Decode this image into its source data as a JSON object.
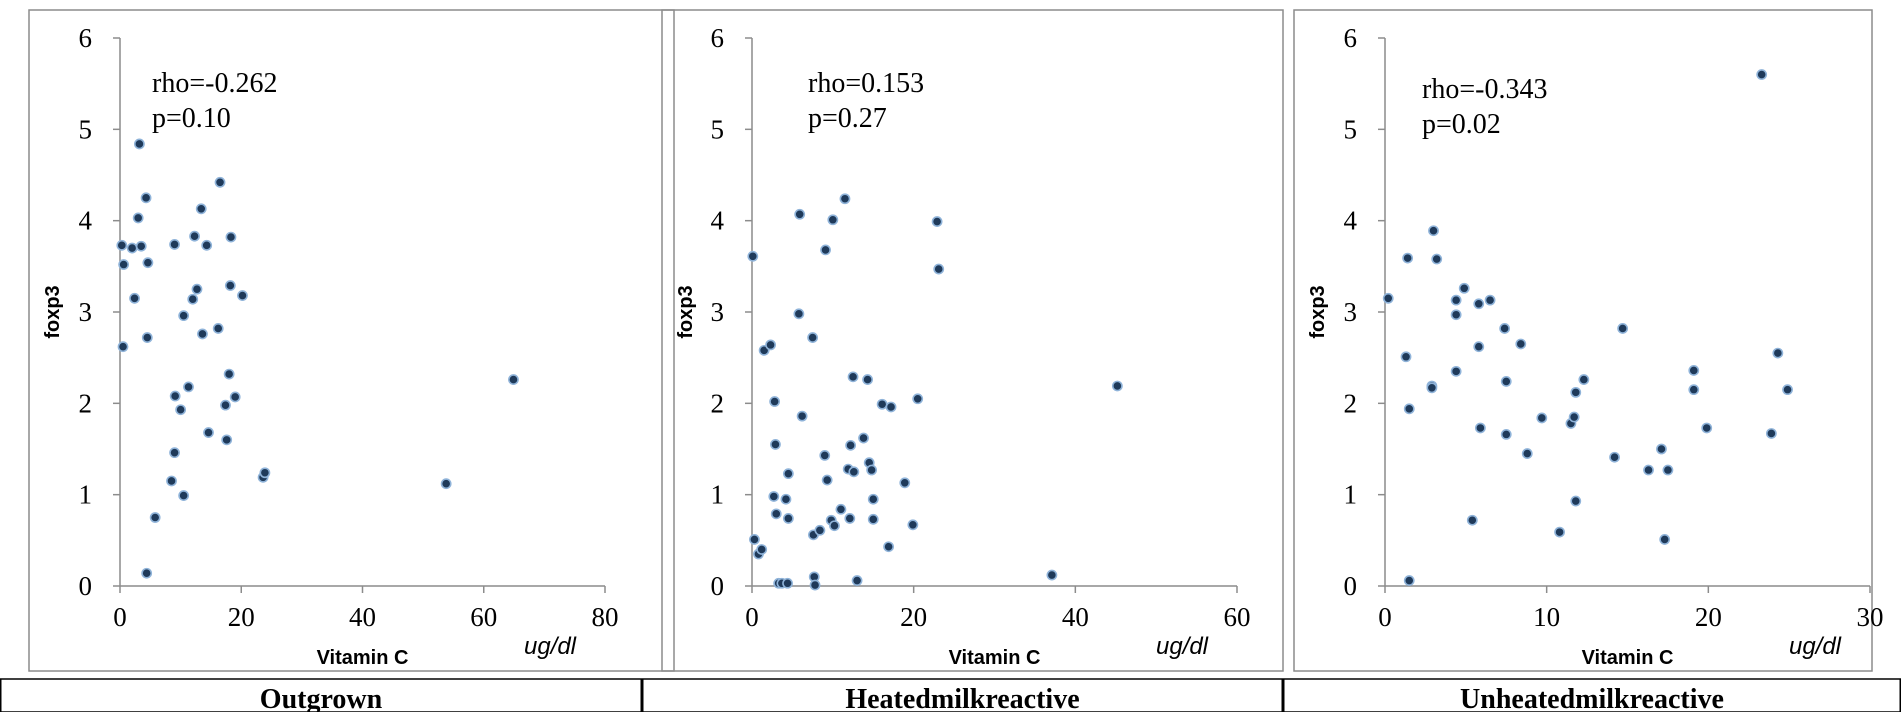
{
  "chart_data": [
    {
      "type": "scatter",
      "caption": "Outgrown",
      "xlabel": "Vitamin C",
      "xunit": "ug/dl",
      "ylabel": "foxp3",
      "xlim": [
        0,
        80
      ],
      "ylim": [
        0,
        6
      ],
      "xticks": [
        0,
        20,
        40,
        60,
        80
      ],
      "yticks": [
        0,
        1,
        2,
        3,
        4,
        5,
        6
      ],
      "annotations": [
        "rho=-0.262",
        "p=0.10"
      ],
      "marker_color": "#1f3a5a",
      "points": [
        [
          0.3,
          3.73
        ],
        [
          0.5,
          2.62
        ],
        [
          0.6,
          3.52
        ],
        [
          2.0,
          3.7
        ],
        [
          2.4,
          3.15
        ],
        [
          3.0,
          4.03
        ],
        [
          3.2,
          4.84
        ],
        [
          3.5,
          3.72
        ],
        [
          4.3,
          4.25
        ],
        [
          4.5,
          2.72
        ],
        [
          4.6,
          3.54
        ],
        [
          4.4,
          0.14
        ],
        [
          5.8,
          0.75
        ],
        [
          8.5,
          1.15
        ],
        [
          9.0,
          3.74
        ],
        [
          9.1,
          2.08
        ],
        [
          9.0,
          1.46
        ],
        [
          10.0,
          1.93
        ],
        [
          10.5,
          0.99
        ],
        [
          10.5,
          2.96
        ],
        [
          11.3,
          2.18
        ],
        [
          12.0,
          3.14
        ],
        [
          12.3,
          3.83
        ],
        [
          12.7,
          3.25
        ],
        [
          13.4,
          4.13
        ],
        [
          13.6,
          2.76
        ],
        [
          14.3,
          3.73
        ],
        [
          14.6,
          1.68
        ],
        [
          16.2,
          2.82
        ],
        [
          16.5,
          4.42
        ],
        [
          17.4,
          1.98
        ],
        [
          17.6,
          1.6
        ],
        [
          18.0,
          2.32
        ],
        [
          18.2,
          3.29
        ],
        [
          18.3,
          3.82
        ],
        [
          19.0,
          2.07
        ],
        [
          20.2,
          3.18
        ],
        [
          23.6,
          1.19
        ],
        [
          23.9,
          1.24
        ],
        [
          53.8,
          1.12
        ],
        [
          64.9,
          2.26
        ]
      ]
    },
    {
      "type": "scatter",
      "caption": "Heatedmilkreactive",
      "xlabel": "Vitamin C",
      "xunit": "ug/dl",
      "ylabel": "foxp3",
      "xlim": [
        0,
        60
      ],
      "ylim": [
        0,
        6
      ],
      "xticks": [
        0,
        20,
        40,
        60
      ],
      "yticks": [
        0,
        1,
        2,
        3,
        4,
        5,
        6
      ],
      "annotations": [
        "rho=0.153",
        "p=0.27"
      ],
      "marker_color": "#1f3a5a",
      "points": [
        [
          0.1,
          3.61
        ],
        [
          0.3,
          0.51
        ],
        [
          0.8,
          0.35
        ],
        [
          1.2,
          0.4
        ],
        [
          1.5,
          2.58
        ],
        [
          2.3,
          2.64
        ],
        [
          2.7,
          0.98
        ],
        [
          2.8,
          2.02
        ],
        [
          2.9,
          1.55
        ],
        [
          3.0,
          0.79
        ],
        [
          3.3,
          0.03
        ],
        [
          3.7,
          0.03
        ],
        [
          4.2,
          0.95
        ],
        [
          4.4,
          0.03
        ],
        [
          4.5,
          1.23
        ],
        [
          4.5,
          0.74
        ],
        [
          5.8,
          2.98
        ],
        [
          5.9,
          4.07
        ],
        [
          6.2,
          1.86
        ],
        [
          7.5,
          2.72
        ],
        [
          7.6,
          0.56
        ],
        [
          7.7,
          0.1
        ],
        [
          7.8,
          0.01
        ],
        [
          8.4,
          0.61
        ],
        [
          9.0,
          1.43
        ],
        [
          9.1,
          3.68
        ],
        [
          9.3,
          1.16
        ],
        [
          9.8,
          0.72
        ],
        [
          10.0,
          4.01
        ],
        [
          10.2,
          0.66
        ],
        [
          11.0,
          0.84
        ],
        [
          11.5,
          4.24
        ],
        [
          11.9,
          1.28
        ],
        [
          12.1,
          0.74
        ],
        [
          12.2,
          1.54
        ],
        [
          12.5,
          2.29
        ],
        [
          12.6,
          1.25
        ],
        [
          13.0,
          0.06
        ],
        [
          13.8,
          1.62
        ],
        [
          14.3,
          2.26
        ],
        [
          14.5,
          1.35
        ],
        [
          14.8,
          1.27
        ],
        [
          15.0,
          0.73
        ],
        [
          15.0,
          0.95
        ],
        [
          16.1,
          1.99
        ],
        [
          16.9,
          0.43
        ],
        [
          17.2,
          1.96
        ],
        [
          18.9,
          1.13
        ],
        [
          19.9,
          0.67
        ],
        [
          20.5,
          2.05
        ],
        [
          22.9,
          3.99
        ],
        [
          23.1,
          3.47
        ],
        [
          37.1,
          0.12
        ],
        [
          45.2,
          2.19
        ]
      ]
    },
    {
      "type": "scatter",
      "caption": "Unheatedmilkreactive",
      "xlabel": "Vitamin C",
      "xunit": "ug/dl",
      "ylabel": "foxp3",
      "xlim": [
        0,
        30
      ],
      "ylim": [
        0,
        6
      ],
      "xticks": [
        0,
        10,
        20,
        30
      ],
      "yticks": [
        0,
        1,
        2,
        3,
        4,
        5,
        6
      ],
      "annotations": [
        "rho=-0.343",
        "p=0.02"
      ],
      "marker_color": "#1f3a5a",
      "points": [
        [
          0.2,
          3.15
        ],
        [
          1.3,
          2.51
        ],
        [
          1.4,
          3.59
        ],
        [
          1.5,
          1.94
        ],
        [
          1.5,
          0.06
        ],
        [
          2.9,
          2.19
        ],
        [
          2.9,
          2.17
        ],
        [
          3.0,
          3.89
        ],
        [
          3.2,
          3.58
        ],
        [
          4.4,
          3.13
        ],
        [
          4.4,
          2.35
        ],
        [
          4.4,
          2.97
        ],
        [
          4.9,
          3.26
        ],
        [
          5.4,
          0.72
        ],
        [
          5.8,
          2.62
        ],
        [
          5.8,
          3.09
        ],
        [
          5.9,
          1.73
        ],
        [
          6.5,
          3.13
        ],
        [
          7.4,
          2.82
        ],
        [
          7.5,
          2.24
        ],
        [
          7.5,
          1.66
        ],
        [
          8.4,
          2.65
        ],
        [
          8.8,
          1.45
        ],
        [
          9.7,
          1.84
        ],
        [
          10.8,
          0.59
        ],
        [
          11.5,
          1.78
        ],
        [
          11.7,
          1.85
        ],
        [
          11.8,
          0.93
        ],
        [
          11.8,
          2.12
        ],
        [
          12.3,
          2.26
        ],
        [
          14.2,
          1.41
        ],
        [
          14.7,
          2.82
        ],
        [
          16.3,
          1.27
        ],
        [
          17.1,
          1.5
        ],
        [
          17.3,
          0.51
        ],
        [
          17.5,
          1.27
        ],
        [
          19.1,
          2.36
        ],
        [
          19.1,
          2.15
        ],
        [
          19.9,
          1.73
        ],
        [
          23.3,
          5.6
        ],
        [
          23.9,
          1.67
        ],
        [
          24.3,
          2.55
        ],
        [
          24.9,
          2.15
        ]
      ]
    }
  ]
}
